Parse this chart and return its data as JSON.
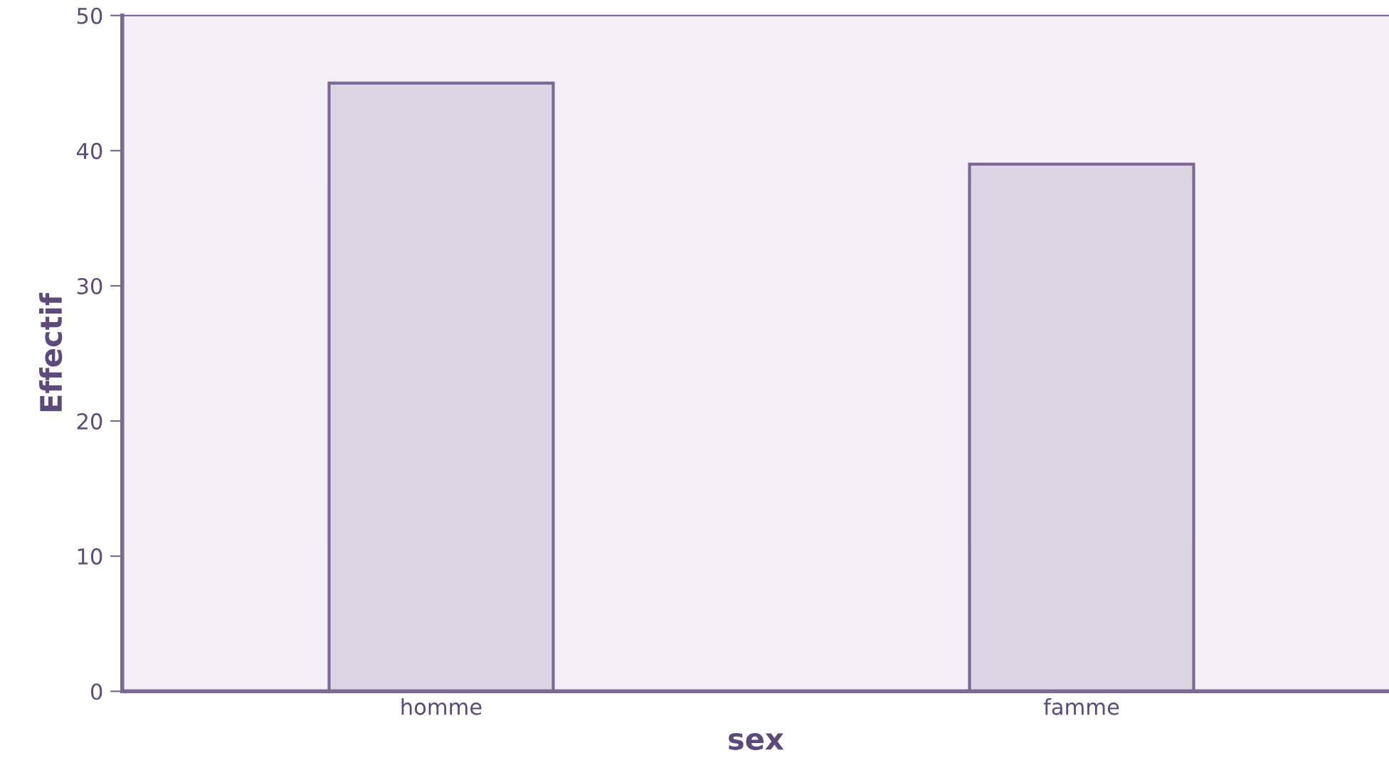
{
  "chart_data": {
    "type": "bar",
    "categories": [
      "homme",
      "famme"
    ],
    "values": [
      45,
      39
    ],
    "color": "#dcd5e3",
    "xlabel": "sex",
    "ylabel": "Effectif",
    "ylim": [
      0,
      50
    ],
    "yticks": [
      0,
      10,
      20,
      30,
      40,
      50
    ],
    "grid": false
  }
}
